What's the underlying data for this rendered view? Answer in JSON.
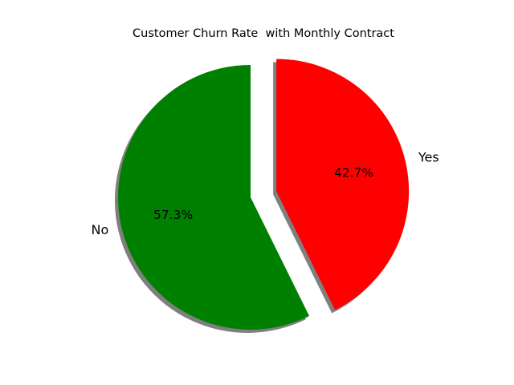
{
  "chart_data": {
    "type": "pie",
    "title": "Customer Churn Rate  with Monthly Contract",
    "categories": [
      "No",
      "Yes"
    ],
    "values": [
      57.3,
      42.7
    ],
    "percent_labels": [
      "57.3%",
      "42.7%"
    ],
    "colors": [
      "#008000",
      "#ff0000"
    ],
    "exploded": [
      false,
      true
    ],
    "shadow": true,
    "start_angle_deg": 90,
    "direction": "counterclockwise"
  }
}
